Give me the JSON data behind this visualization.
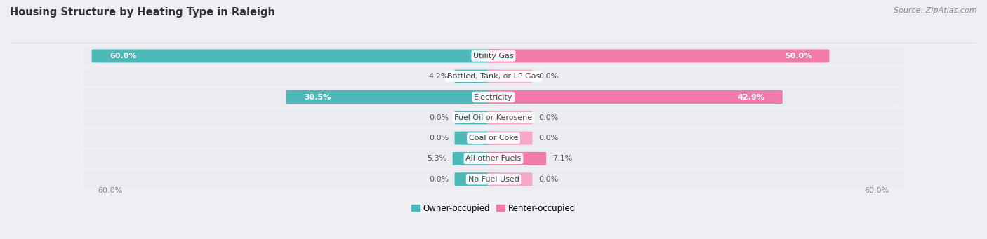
{
  "title": "Housing Structure by Heating Type in Raleigh",
  "source": "Source: ZipAtlas.com",
  "categories": [
    "Utility Gas",
    "Bottled, Tank, or LP Gas",
    "Electricity",
    "Fuel Oil or Kerosene",
    "Coal or Coke",
    "All other Fuels",
    "No Fuel Used"
  ],
  "owner_values": [
    60.0,
    4.2,
    30.5,
    0.0,
    0.0,
    5.3,
    0.0
  ],
  "renter_values": [
    50.0,
    0.0,
    42.9,
    0.0,
    0.0,
    7.1,
    0.0
  ],
  "owner_color": "#4db8b8",
  "renter_color": "#f07aaa",
  "renter_color_light": "#f5a8c8",
  "background_color": "#eeeef3",
  "bar_background": "#e2e2ea",
  "bar_background_light": "#ebebf2",
  "max_value": 60.0,
  "stub_value": 5.0,
  "title_fontsize": 10.5,
  "source_fontsize": 8,
  "label_fontsize": 8,
  "category_fontsize": 8,
  "axis_label_fontsize": 8
}
